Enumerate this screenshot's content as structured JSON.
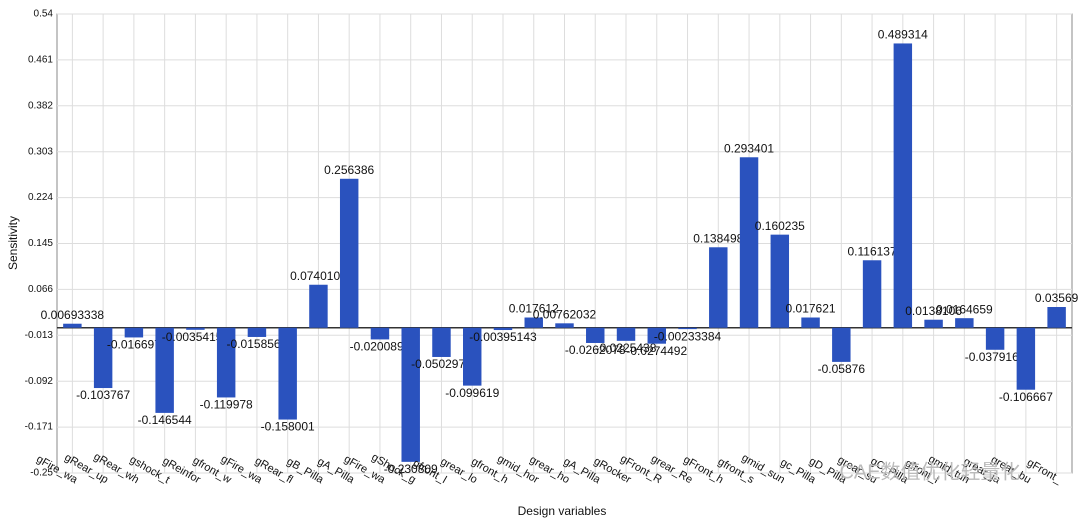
{
  "chart_data": {
    "type": "bar",
    "x_label": "Design variables",
    "y_label": "Sensitivity",
    "watermark": "CAE数值优化轻量化",
    "categories": [
      "gFire_wa",
      "gRear_up",
      "gRear_wh",
      "gshock_t",
      "gReinfor",
      "gfront_w",
      "gFire_wa",
      "gRear_fl",
      "gB_Pilla",
      "gA_Pilla",
      "gFire_wa",
      "gShock_g",
      "gfront_l",
      "grear_lo",
      "gfront_h",
      "gmid_hor",
      "grear_ho",
      "gA_Pilla",
      "gRocker",
      "gFront_R",
      "grear_Re",
      "gFront_h",
      "gfront_s",
      "gmid_sun",
      "gc_Pilla",
      "gD_Pilla",
      "grear_su",
      "gC_Pilla",
      "gfront_l",
      "gmid_tun",
      "grear_ja",
      "grear_bu",
      "gFront_"
    ],
    "values": [
      0.00693338,
      -0.103767,
      -0.016697,
      -0.146544,
      -0.00354152,
      -0.119978,
      -0.0158563,
      -0.158001,
      0.0740103,
      0.256386,
      -0.0200897,
      -0.230809,
      -0.0502972,
      -0.099619,
      -0.00395143,
      0.017612,
      0.00762032,
      -0.0262078,
      -0.0225438,
      -0.0274492,
      -0.00233384,
      0.138498,
      0.293401,
      0.160235,
      0.017621,
      -0.05876,
      0.116137,
      0.489314,
      0.0138106,
      0.0164659,
      -0.0379169,
      -0.106667,
      0.03569
    ],
    "color": "#2a52be",
    "ylim": [
      -0.25,
      0.54
    ],
    "yticks": [
      -0.25,
      -0.171,
      -0.092,
      -0.013,
      0.066,
      0.145,
      0.224,
      0.303,
      0.382,
      0.461,
      0.54
    ],
    "grid": true
  }
}
